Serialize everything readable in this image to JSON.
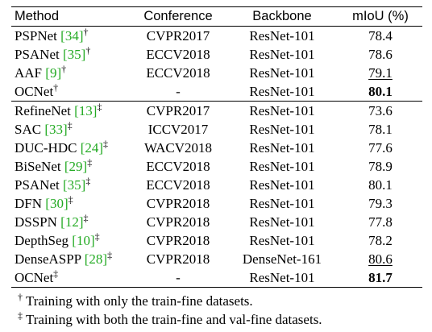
{
  "table": {
    "headers": [
      "Method",
      "Conference",
      "Backbone",
      "mIoU (%)"
    ],
    "group1": [
      {
        "method": "PSPNet",
        "ref": "34",
        "mark": "†",
        "conference": "CVPR2017",
        "backbone": "ResNet-101",
        "miou": "78.4",
        "style": ""
      },
      {
        "method": "PSANet",
        "ref": "35",
        "mark": "†",
        "conference": "ECCV2018",
        "backbone": "ResNet-101",
        "miou": "78.6",
        "style": ""
      },
      {
        "method": "AAF",
        "ref": "9",
        "mark": "†",
        "conference": "ECCV2018",
        "backbone": "ResNet-101",
        "miou": "79.1",
        "style": "second"
      },
      {
        "method": "OCNet",
        "ref": "",
        "mark": "†",
        "conference": "-",
        "backbone": "ResNet-101",
        "miou": "80.1",
        "style": "best"
      }
    ],
    "group2": [
      {
        "method": "RefineNet",
        "ref": "13",
        "mark": "‡",
        "conference": "CVPR2017",
        "backbone": "ResNet-101",
        "miou": "73.6",
        "style": ""
      },
      {
        "method": "SAC",
        "ref": "33",
        "mark": "‡",
        "conference": "ICCV2017",
        "backbone": "ResNet-101",
        "miou": "78.1",
        "style": ""
      },
      {
        "method": "DUC-HDC",
        "ref": "24",
        "mark": "‡",
        "conference": "WACV2018",
        "backbone": "ResNet-101",
        "miou": "77.6",
        "style": ""
      },
      {
        "method": "BiSeNet",
        "ref": "29",
        "mark": "‡",
        "conference": "ECCV2018",
        "backbone": "ResNet-101",
        "miou": "78.9",
        "style": ""
      },
      {
        "method": "PSANet",
        "ref": "35",
        "mark": "‡",
        "conference": "ECCV2018",
        "backbone": "ResNet-101",
        "miou": "80.1",
        "style": ""
      },
      {
        "method": "DFN",
        "ref": "30",
        "mark": "‡",
        "conference": "CVPR2018",
        "backbone": "ResNet-101",
        "miou": "79.3",
        "style": ""
      },
      {
        "method": "DSSPN",
        "ref": "12",
        "mark": "‡",
        "conference": "CVPR2018",
        "backbone": "ResNet-101",
        "miou": "77.8",
        "style": ""
      },
      {
        "method": "DepthSeg",
        "ref": "10",
        "mark": "‡",
        "conference": "CVPR2018",
        "backbone": "ResNet-101",
        "miou": "78.2",
        "style": ""
      },
      {
        "method": "DenseASPP",
        "ref": "28",
        "mark": "‡",
        "conference": "CVPR2018",
        "backbone": "DenseNet-161",
        "miou": "80.6",
        "style": "second"
      },
      {
        "method": "OCNet",
        "ref": "",
        "mark": "‡",
        "conference": "-",
        "backbone": "ResNet-101",
        "miou": "81.7",
        "style": "best"
      }
    ]
  },
  "notes": [
    {
      "mark": "†",
      "text": " Training with only the train-fine datasets."
    },
    {
      "mark": "‡",
      "text": " Training with both the train-fine and val-fine datasets."
    }
  ],
  "colors": {
    "reference_link": "#22aa22"
  }
}
